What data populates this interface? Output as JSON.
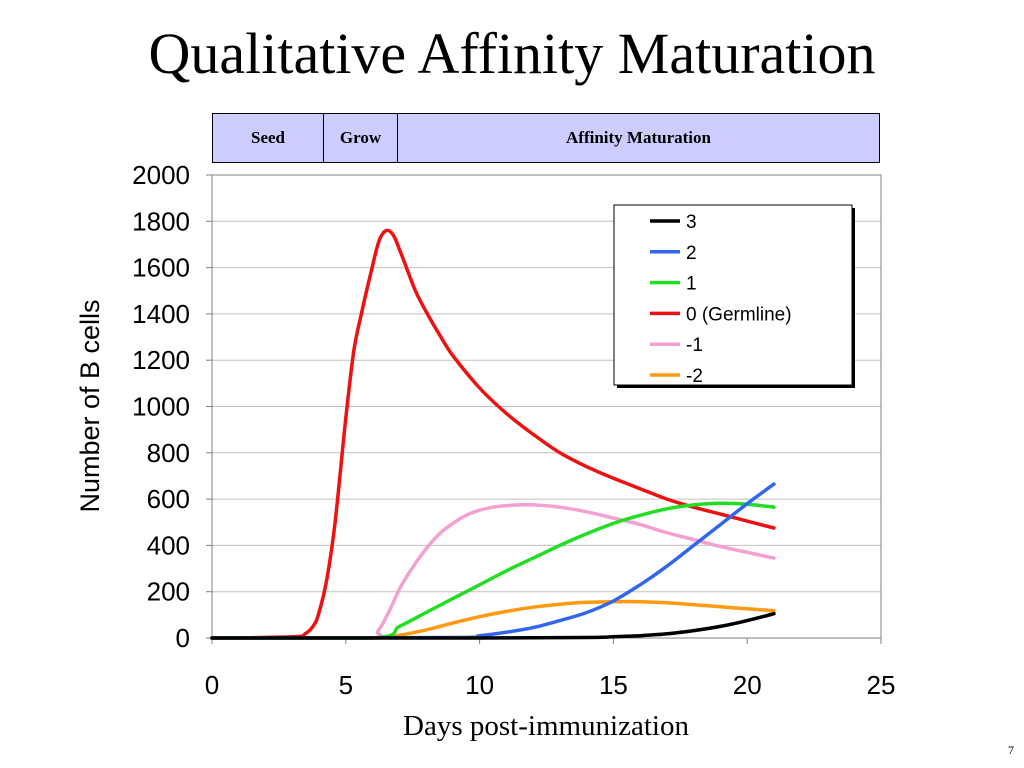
{
  "slide": {
    "title": "Qualitative Affinity Maturation",
    "page_number": "7"
  },
  "phases": [
    {
      "label": "Seed",
      "start": 0,
      "end": 4.15
    },
    {
      "label": "Grow",
      "start": 4.15,
      "end": 6.9
    },
    {
      "label": "Affinity Maturation",
      "start": 6.9,
      "end": 25
    }
  ],
  "chart_data": {
    "type": "line",
    "title": "",
    "xlabel": "Days post-immunization",
    "ylabel": "Number of B cells",
    "xlim": [
      0,
      25
    ],
    "ylim": [
      0,
      2000
    ],
    "xticks": [
      0,
      5,
      10,
      15,
      20,
      25
    ],
    "yticks": [
      0,
      200,
      400,
      600,
      800,
      1000,
      1200,
      1400,
      1600,
      1800,
      2000
    ],
    "grid": "horizontal",
    "legend_position": "top-right",
    "series": [
      {
        "name": "3",
        "color": "#000000",
        "x": [
          0,
          10,
          14,
          15,
          16,
          17,
          18,
          19,
          20,
          21
        ],
        "y": [
          0,
          0,
          2,
          5,
          10,
          18,
          32,
          50,
          75,
          105
        ]
      },
      {
        "name": "2",
        "color": "#3366ee",
        "x": [
          0,
          9,
          10,
          11,
          12,
          13,
          14,
          15,
          16,
          17,
          18,
          19,
          20,
          21
        ],
        "y": [
          0,
          2,
          10,
          25,
          45,
          75,
          110,
          160,
          230,
          310,
          400,
          490,
          580,
          665
        ]
      },
      {
        "name": "1",
        "color": "#22dd22",
        "x": [
          0,
          6,
          7,
          8,
          9,
          10,
          11,
          12,
          13,
          14,
          15,
          16,
          17,
          18,
          19,
          20,
          21
        ],
        "y": [
          0,
          0,
          50,
          110,
          170,
          230,
          290,
          345,
          400,
          450,
          495,
          530,
          558,
          575,
          582,
          578,
          565
        ]
      },
      {
        "name": "0 (Germline)",
        "color": "#ee1111",
        "x": [
          0,
          3,
          3.5,
          3.8,
          4,
          4.3,
          4.6,
          5,
          5.3,
          5.6,
          5.9,
          6.2,
          6.4,
          6.6,
          6.8,
          7,
          7.3,
          7.6,
          8,
          8.5,
          9,
          10,
          11,
          12,
          13,
          14,
          15,
          16,
          17,
          18,
          19,
          20,
          21
        ],
        "y": [
          0,
          5,
          20,
          55,
          110,
          260,
          500,
          950,
          1240,
          1410,
          1560,
          1700,
          1750,
          1760,
          1735,
          1680,
          1590,
          1500,
          1410,
          1310,
          1220,
          1080,
          970,
          880,
          800,
          740,
          690,
          645,
          600,
          565,
          535,
          505,
          475
        ]
      },
      {
        "name": "-1",
        "color": "#f4a0d0",
        "x": [
          0,
          5.8,
          6.2,
          6.6,
          7,
          7.5,
          8,
          8.5,
          9,
          9.5,
          10,
          10.5,
          11,
          11.5,
          12,
          13,
          14,
          15,
          16,
          17,
          18,
          19,
          20,
          21
        ],
        "y": [
          0,
          0,
          30,
          110,
          210,
          305,
          385,
          450,
          495,
          530,
          552,
          565,
          572,
          575,
          575,
          565,
          545,
          518,
          490,
          455,
          425,
          395,
          370,
          345
        ]
      },
      {
        "name": "-2",
        "color": "#ff9911",
        "x": [
          0,
          6,
          7,
          8,
          9,
          10,
          11,
          12,
          13,
          14,
          15,
          16,
          17,
          18,
          19,
          20,
          21
        ],
        "y": [
          0,
          0,
          12,
          35,
          65,
          92,
          115,
          133,
          146,
          154,
          157,
          157,
          152,
          144,
          135,
          126,
          118
        ]
      }
    ]
  }
}
